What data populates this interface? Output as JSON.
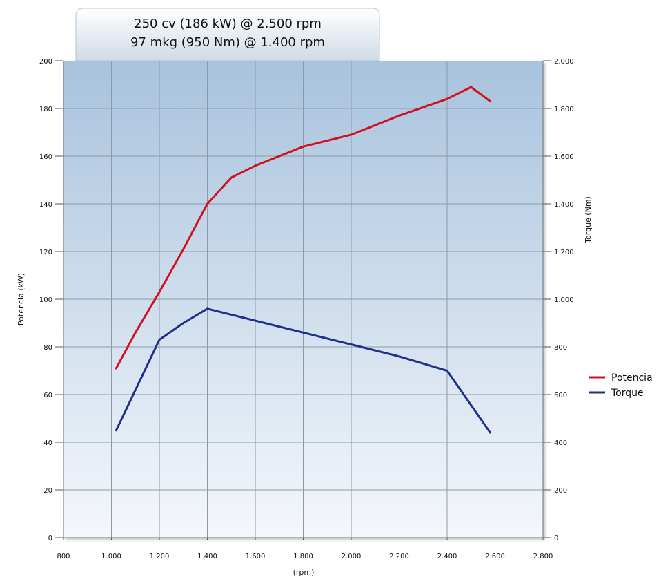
{
  "header": {
    "line1": "250 cv (186 kW) @ 2.500 rpm",
    "line2": "97 mkg (950 Nm) @ 1.400 rpm"
  },
  "chart_data": {
    "type": "line",
    "xlabel": "(rpm)",
    "ylabel": "Potencia (kW)",
    "y2label": "Torque (Nm)",
    "xlim": [
      800,
      2800
    ],
    "ylim": [
      0,
      200
    ],
    "y2lim": [
      0,
      2000
    ],
    "grid": true,
    "legend_position": "right",
    "x_ticks": [
      800,
      1000,
      1200,
      1400,
      1600,
      1800,
      2000,
      2200,
      2400,
      2600,
      2800
    ],
    "x_tick_labels": [
      "800",
      "1.000",
      "1.200",
      "1.400",
      "1.600",
      "1.800",
      "2.000",
      "2.200",
      "2.400",
      "2.600",
      "2.800"
    ],
    "y_ticks": [
      0,
      20,
      40,
      60,
      80,
      100,
      120,
      140,
      160,
      180,
      200
    ],
    "y_tick_labels": [
      "0",
      "20",
      "40",
      "60",
      "80",
      "100",
      "120",
      "140",
      "160",
      "180",
      "200"
    ],
    "y2_ticks": [
      0,
      200,
      400,
      600,
      800,
      1000,
      1200,
      1400,
      1600,
      1800,
      2000
    ],
    "y2_tick_labels": [
      "0",
      "200",
      "400",
      "600",
      "800",
      "1.000",
      "1.200",
      "1.400",
      "1.600",
      "1.800",
      "2.000"
    ],
    "series": [
      {
        "name": "Potencia",
        "axis": "left",
        "color": "#d0101e",
        "x": [
          1020,
          1100,
          1200,
          1300,
          1400,
          1500,
          1600,
          1800,
          2000,
          2200,
          2400,
          2500,
          2580
        ],
        "y": [
          71,
          86,
          103,
          121,
          140,
          151,
          156,
          164,
          169,
          177,
          184,
          189,
          183
        ]
      },
      {
        "name": "Torque",
        "axis": "right",
        "color": "#1f2f8c",
        "x": [
          1020,
          1200,
          1300,
          1400,
          1600,
          1800,
          2000,
          2200,
          2400,
          2580
        ],
        "y": [
          450,
          830,
          900,
          960,
          910,
          860,
          810,
          760,
          700,
          440
        ]
      }
    ]
  },
  "colors": {
    "plot_top": "#a8c3de",
    "plot_bottom": "#f4f7fb",
    "grid": "#8f99a4",
    "header_box_top": "#ffffff",
    "header_box_bottom": "#cfdbe7"
  }
}
